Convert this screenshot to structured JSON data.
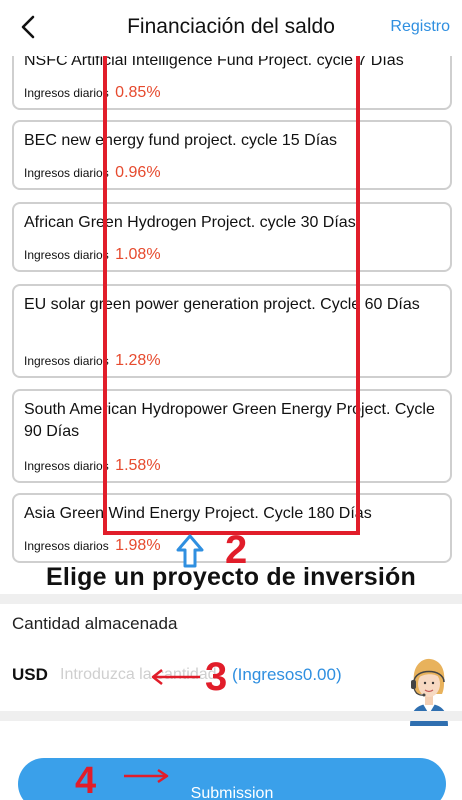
{
  "header": {
    "title": "Financiación del saldo",
    "right_link": "Registro"
  },
  "projects": [
    {
      "name": "NSFC Artificial Intelligence Fund Project. cycle 7 Días",
      "rate_label": "Ingresos diarios",
      "rate": "0.85%"
    },
    {
      "name": "BEC new energy fund project. cycle 15 Días",
      "rate_label": "Ingresos diarios",
      "rate": "0.96%"
    },
    {
      "name": "African Green Hydrogen Project. cycle 30 Días",
      "rate_label": "Ingresos diarios",
      "rate": "1.08%"
    },
    {
      "name": "EU solar green power generation project. Cycle 60 Días",
      "rate_label": "Ingresos diarios",
      "rate": "1.28%"
    },
    {
      "name": "South American Hydropower Green Energy Project. Cycle 90 Días",
      "rate_label": "Ingresos diarios",
      "rate": "1.58%"
    },
    {
      "name": "Asia Green Wind Energy Project. Cycle 180 Días",
      "rate_label": "Ingresos diarios",
      "rate": "1.98%"
    }
  ],
  "annotations": {
    "step2": "2",
    "step3": "3",
    "step4": "4",
    "caption": "Elige un proyecto de inversión",
    "accent_color": "#e11d2a"
  },
  "amount": {
    "stored_label": "Cantidad almacenada",
    "currency": "USD",
    "placeholder": "Introduzca la cantidad",
    "ingresos": "(Ingresos0.00)"
  },
  "submit": {
    "label": "Submission"
  },
  "colors": {
    "link_blue": "#2f8fe0",
    "rate_red": "#e64a2e",
    "button_blue": "#3aa0ea"
  },
  "icons": {
    "back": "chevron-left-icon",
    "support": "customer-service-agent-icon"
  }
}
